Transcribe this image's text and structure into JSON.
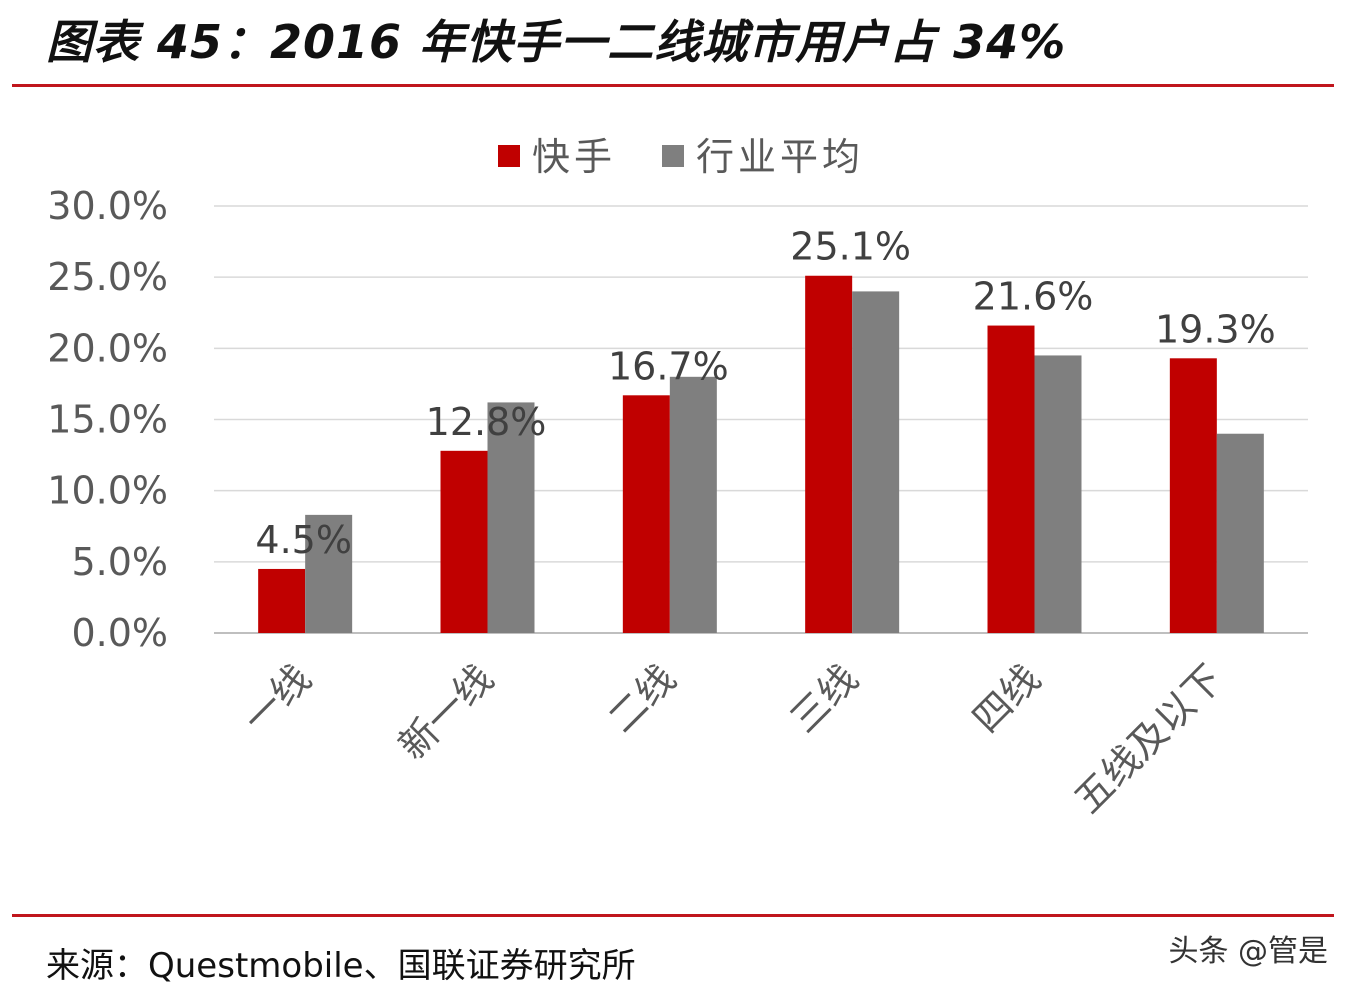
{
  "header": {
    "title": "图表 45：2016 年快手一二线城市用户占 34%"
  },
  "footer": {
    "source": "来源：Questmobile、国联证券研究所",
    "watermark": "头条 @管是"
  },
  "chart_data": {
    "type": "bar",
    "categories": [
      "一线",
      "新一线",
      "二线",
      "三线",
      "四线",
      "五线及以下"
    ],
    "series": [
      {
        "name": "快手",
        "color": "#c00000",
        "values": [
          4.5,
          12.8,
          16.7,
          25.1,
          21.6,
          19.3
        ],
        "labels": [
          "4.5%",
          "12.8%",
          "16.7%",
          "25.1%",
          "21.6%",
          "19.3%"
        ]
      },
      {
        "name": "行业平均",
        "color": "#7f7f7f",
        "values": [
          8.3,
          16.2,
          18.0,
          24.0,
          19.5,
          14.0
        ]
      }
    ],
    "ylim": [
      0,
      30
    ],
    "yticks": [
      "0.0%",
      "5.0%",
      "10.0%",
      "15.0%",
      "20.0%",
      "25.0%",
      "30.0%"
    ],
    "grid": true,
    "legend": "top-center"
  }
}
